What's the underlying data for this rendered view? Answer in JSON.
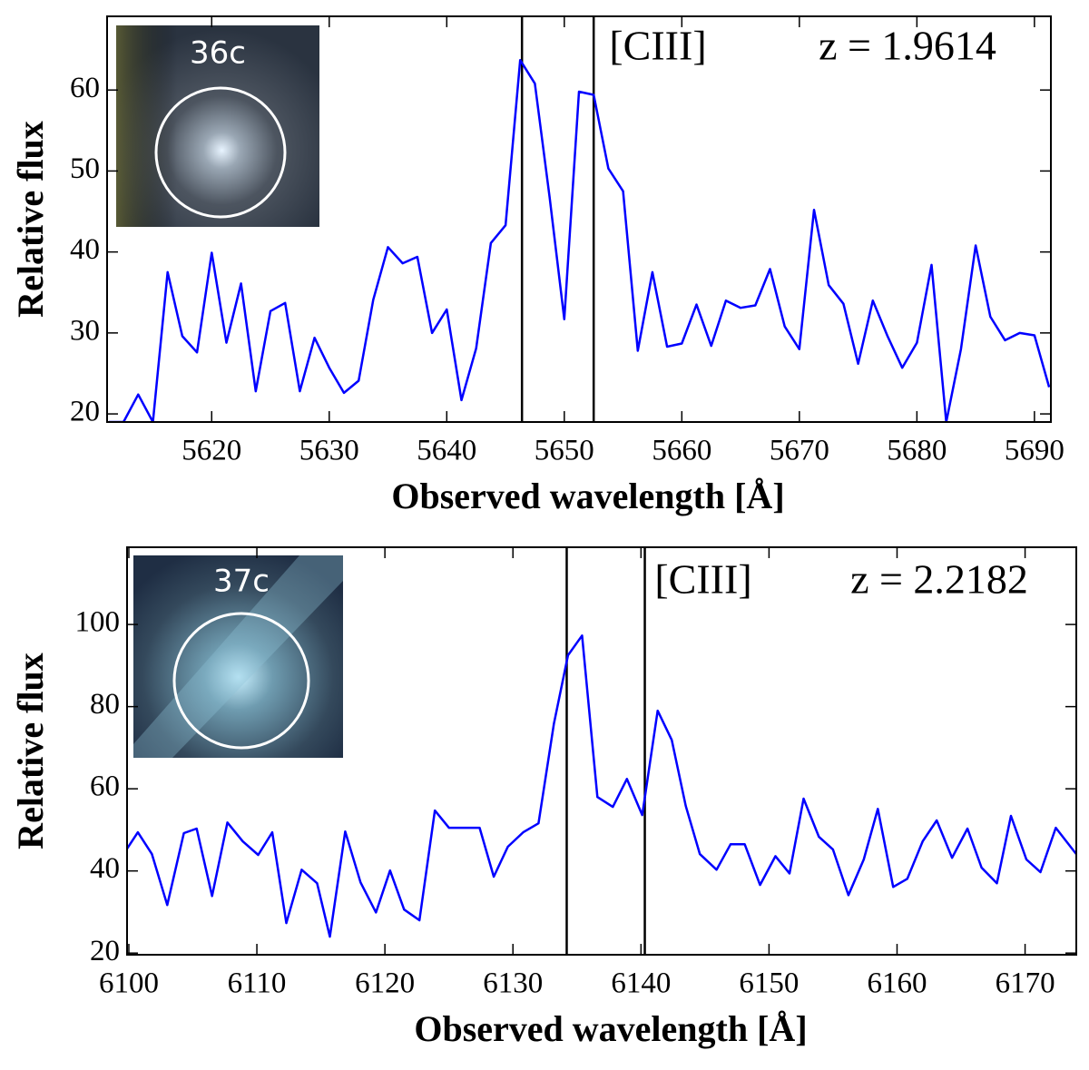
{
  "chart_data": [
    {
      "type": "line",
      "color": "#0000ff",
      "x": [
        5611.25,
        5612.5,
        5613.75,
        5615,
        5616.25,
        5617.5,
        5618.75,
        5620,
        5621.25,
        5622.5,
        5623.75,
        5625,
        5626.25,
        5627.5,
        5628.75,
        5630,
        5631.25,
        5632.5,
        5633.75,
        5635,
        5636.25,
        5637.5,
        5638.75,
        5640,
        5641.25,
        5642.5,
        5643.75,
        5645,
        5646.25,
        5647.5,
        5648.75,
        5650,
        5651.25,
        5652.5,
        5653.75,
        5655,
        5656.25,
        5657.5,
        5658.75,
        5660,
        5661.25,
        5662.5,
        5663.75,
        5665,
        5666.25,
        5667.5,
        5668.75,
        5670,
        5671.25,
        5672.5,
        5673.75,
        5675,
        5676.25,
        5677.5,
        5678.75,
        5680,
        5681.25,
        5682.5,
        5683.75,
        5685,
        5686.25,
        5687.5,
        5688.75,
        5690,
        5691.25
      ],
      "values": [
        19.0,
        19.0,
        22.4,
        19.0,
        37.5,
        29.6,
        27.6,
        39.9,
        28.8,
        36.1,
        22.8,
        32.7,
        33.7,
        22.8,
        29.4,
        25.7,
        22.6,
        24.1,
        34.1,
        40.6,
        38.6,
        39.4,
        30.0,
        32.9,
        21.7,
        28.1,
        41.1,
        43.3,
        63.7,
        60.8,
        46.8,
        31.7,
        59.8,
        59.4,
        50.3,
        47.5,
        27.8,
        37.5,
        28.3,
        28.7,
        33.5,
        28.4,
        34.0,
        33.1,
        33.4,
        37.9,
        30.8,
        28.0,
        45.2,
        35.9,
        33.6,
        26.2,
        34.0,
        29.6,
        25.7,
        28.8,
        38.4,
        19.0,
        28.0,
        40.8,
        32.0,
        29.1,
        30.0,
        29.7,
        23.3
      ],
      "vlines": [
        5646.4,
        5652.5
      ],
      "xlim": [
        5611.1,
        5691.4
      ],
      "ylim": [
        19.0,
        69.1
      ],
      "xticks": [
        5620,
        5630,
        5640,
        5650,
        5660,
        5670,
        5680,
        5690
      ],
      "yticks": [
        20,
        30,
        40,
        50,
        60
      ],
      "xlabel": "Observed wavelength [Å]",
      "ylabel": "Relative flux",
      "line_label": "[CIII]",
      "redshift_label": "z = 1.9614",
      "inset_label": "36c"
    },
    {
      "type": "line",
      "color": "#0000ff",
      "x": [
        6099.86,
        6100.7,
        6101.8,
        6103.0,
        6104.3,
        6105.3,
        6106.5,
        6107.7,
        6108.9,
        6110.1,
        6111.2,
        6112.3,
        6113.5,
        6114.7,
        6115.7,
        6116.9,
        6118.1,
        6119.3,
        6120.4,
        6121.5,
        6122.7,
        6123.9,
        6125.0,
        6126.2,
        6127.4,
        6128.5,
        6129.6,
        6130.8,
        6132.0,
        6133.2,
        6134.3,
        6135.4,
        6136.6,
        6137.8,
        6138.9,
        6140.1,
        6141.3,
        6142.4,
        6143.5,
        6144.6,
        6145.9,
        6147.0,
        6148.1,
        6149.3,
        6150.5,
        6151.6,
        6152.7,
        6153.9,
        6155.0,
        6156.2,
        6157.4,
        6158.5,
        6159.7,
        6160.8,
        6162.0,
        6163.1,
        6164.3,
        6165.5,
        6166.6,
        6167.8,
        6168.9,
        6170.1,
        6171.2,
        6172.4,
        6174.0
      ],
      "values": [
        45.4,
        49.4,
        44.1,
        31.7,
        49.2,
        50.3,
        33.9,
        51.8,
        47.2,
        43.9,
        49.4,
        27.3,
        40.3,
        37.0,
        24.0,
        49.6,
        37.2,
        29.9,
        40.1,
        30.6,
        28.0,
        54.7,
        50.5,
        50.5,
        50.5,
        38.6,
        45.9,
        49.4,
        51.6,
        75.9,
        92.5,
        97.3,
        58.0,
        55.6,
        62.4,
        53.6,
        79.0,
        71.9,
        55.8,
        44.1,
        40.3,
        46.5,
        46.5,
        36.6,
        43.6,
        39.4,
        57.6,
        48.3,
        45.2,
        34.1,
        42.8,
        55.1,
        36.1,
        38.1,
        47.2,
        52.3,
        43.2,
        50.3,
        40.8,
        37.0,
        53.4,
        42.8,
        39.7,
        50.5,
        44.1
      ],
      "vlines": [
        6134.2,
        6140.3
      ],
      "xlim": [
        6099.86,
        6174.0
      ],
      "ylim": [
        19.6,
        118.8
      ],
      "xticks": [
        6100,
        6110,
        6120,
        6130,
        6140,
        6150,
        6160,
        6170
      ],
      "yticks": [
        20,
        40,
        60,
        80,
        100
      ],
      "xlabel": "Observed wavelength [Å]",
      "ylabel": "Relative flux",
      "line_label": "[CIII]",
      "redshift_label": "z = 2.2182",
      "inset_label": "37c"
    }
  ]
}
